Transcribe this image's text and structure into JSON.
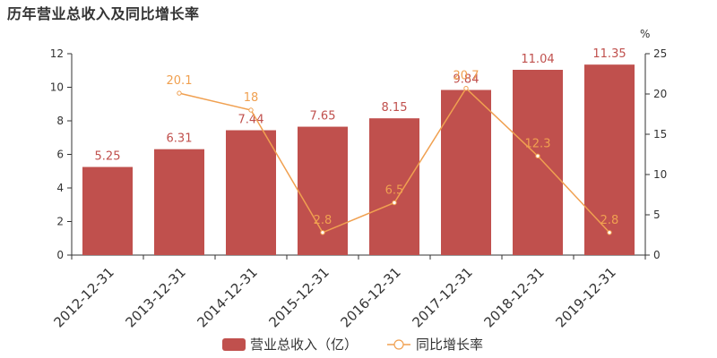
{
  "chart_data": {
    "type": "bar",
    "title": "历年营业总收入及同比增长率",
    "categories": [
      "2012-12-31",
      "2013-12-31",
      "2014-12-31",
      "2015-12-31",
      "2016-12-31",
      "2017-12-31",
      "2018-12-31",
      "2019-12-31"
    ],
    "series": [
      {
        "name": "营业总收入（亿）",
        "type": "bar",
        "axis": "left",
        "values": [
          5.25,
          6.31,
          7.44,
          7.65,
          8.15,
          9.84,
          11.04,
          11.35
        ],
        "labels": [
          "5.25",
          "6.31",
          "7.44",
          "7.65",
          "8.15",
          "9.84",
          "11.04",
          "11.35"
        ],
        "color": "#c0504d"
      },
      {
        "name": "同比增长率",
        "type": "line",
        "axis": "right",
        "values": [
          null,
          20.1,
          18,
          2.8,
          6.5,
          20.7,
          12.3,
          2.8
        ],
        "labels": [
          "",
          "20.1",
          "18",
          "2.8",
          "6.5",
          "20.7",
          "12.3",
          "2.8"
        ],
        "color": "#f0a050"
      }
    ],
    "y_left": {
      "min": 0,
      "max": 12,
      "ticks": [
        "0",
        "2",
        "4",
        "6",
        "8",
        "10",
        "12"
      ]
    },
    "y_right": {
      "min": 0,
      "max": 25,
      "unit": "%",
      "ticks": [
        "0",
        "5",
        "10",
        "15",
        "20",
        "25"
      ]
    },
    "legend": {
      "position": "bottom-center"
    },
    "grid": false
  }
}
